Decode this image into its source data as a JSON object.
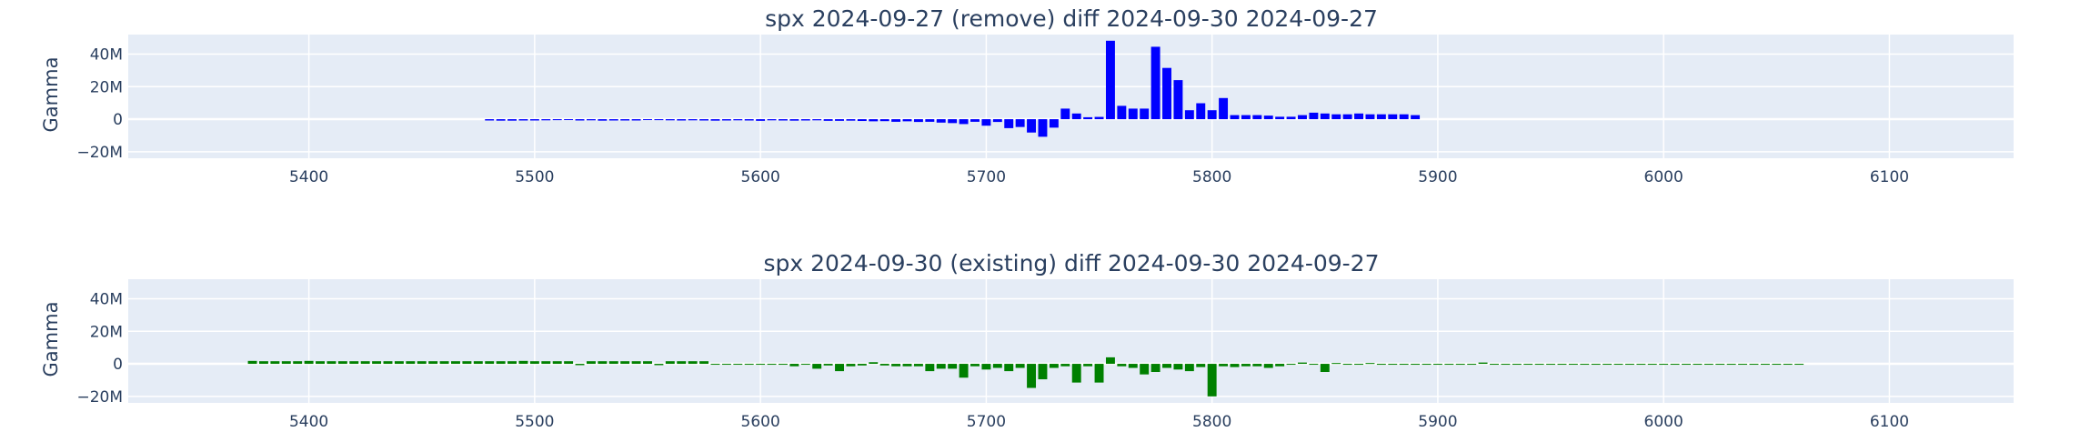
{
  "chart_data": [
    {
      "type": "bar",
      "title": "spx 2024-09-27 (remove) diff 2024-09-30 2024-09-27",
      "xlabel": "",
      "ylabel": "Gamma",
      "xlim": [
        5320,
        6155
      ],
      "ylim": [
        -24,
        52
      ],
      "x_ticks": [
        5400,
        5500,
        5600,
        5700,
        5800,
        5900,
        6000,
        6100
      ],
      "y_ticks": [
        -20,
        0,
        20,
        40
      ],
      "y_tick_labels": [
        "−20M",
        "0",
        "20M",
        "40M"
      ],
      "y_units": "M",
      "bar_color": "#0000ff",
      "x": [
        5480,
        5485,
        5490,
        5495,
        5500,
        5505,
        5510,
        5515,
        5520,
        5525,
        5530,
        5535,
        5540,
        5545,
        5550,
        5555,
        5560,
        5565,
        5570,
        5575,
        5580,
        5585,
        5590,
        5595,
        5600,
        5605,
        5610,
        5615,
        5620,
        5625,
        5630,
        5635,
        5640,
        5645,
        5650,
        5655,
        5660,
        5665,
        5670,
        5675,
        5680,
        5685,
        5690,
        5695,
        5700,
        5705,
        5710,
        5715,
        5720,
        5725,
        5730,
        5735,
        5740,
        5745,
        5750,
        5755,
        5760,
        5765,
        5770,
        5775,
        5780,
        5785,
        5790,
        5795,
        5800,
        5805,
        5810,
        5815,
        5820,
        5825,
        5830,
        5835,
        5840,
        5845,
        5850,
        5855,
        5860,
        5865,
        5870,
        5875,
        5880,
        5885,
        5890
      ],
      "values": [
        -0.8,
        -0.9,
        -0.9,
        -0.8,
        -0.8,
        -0.7,
        -0.6,
        -0.5,
        -0.8,
        -0.7,
        -0.9,
        -0.8,
        -0.8,
        -0.8,
        -0.5,
        -0.6,
        -0.7,
        -0.8,
        -0.7,
        -0.8,
        -0.9,
        -0.8,
        -0.7,
        -0.8,
        -1.0,
        -0.7,
        -0.8,
        -0.9,
        -0.8,
        -0.7,
        -1.0,
        -1.0,
        -0.9,
        -1.1,
        -1.3,
        -1.2,
        -1.6,
        -1.3,
        -1.7,
        -1.6,
        -2.1,
        -2.4,
        -3.0,
        -1.6,
        -4.0,
        -1.7,
        -5.5,
        -4.8,
        -8.2,
        -10.8,
        -5.2,
        6.5,
        3.5,
        1.2,
        1.4,
        48.2,
        8.2,
        6.5,
        6.5,
        44.5,
        31.5,
        24.0,
        5.5,
        9.8,
        5.5,
        13.0,
        2.5,
        2.5,
        2.5,
        2.2,
        1.5,
        1.5,
        2.5,
        4.0,
        3.5,
        3.0,
        3.0,
        3.5,
        3.0,
        3.0,
        3.0,
        3.0,
        2.5
      ]
    },
    {
      "type": "bar",
      "title": "spx 2024-09-30 (existing) diff 2024-09-30 2024-09-27",
      "xlabel": "",
      "ylabel": "Gamma",
      "xlim": [
        5320,
        6155
      ],
      "ylim": [
        -24,
        52
      ],
      "x_ticks": [
        5400,
        5500,
        5600,
        5700,
        5800,
        5900,
        6000,
        6100
      ],
      "y_ticks": [
        -20,
        0,
        20,
        40
      ],
      "y_tick_labels": [
        "−20M",
        "0",
        "20M",
        "40M"
      ],
      "y_units": "M",
      "bar_color": "#008000",
      "x": [
        5375,
        5380,
        5385,
        5390,
        5395,
        5400,
        5405,
        5410,
        5415,
        5420,
        5425,
        5430,
        5435,
        5440,
        5445,
        5450,
        5455,
        5460,
        5465,
        5470,
        5475,
        5480,
        5485,
        5490,
        5495,
        5500,
        5505,
        5510,
        5515,
        5520,
        5525,
        5530,
        5535,
        5540,
        5545,
        5550,
        5555,
        5560,
        5565,
        5570,
        5575,
        5580,
        5585,
        5590,
        5595,
        5600,
        5605,
        5610,
        5615,
        5620,
        5625,
        5630,
        5635,
        5640,
        5645,
        5650,
        5655,
        5660,
        5665,
        5670,
        5675,
        5680,
        5685,
        5690,
        5695,
        5700,
        5705,
        5710,
        5715,
        5720,
        5725,
        5730,
        5735,
        5740,
        5745,
        5750,
        5755,
        5760,
        5765,
        5770,
        5775,
        5780,
        5785,
        5790,
        5795,
        5800,
        5805,
        5810,
        5815,
        5820,
        5825,
        5830,
        5835,
        5840,
        5845,
        5850,
        5855,
        5860,
        5865,
        5870,
        5875,
        5880,
        5885,
        5890,
        5895,
        5900,
        5905,
        5910,
        5915,
        5920,
        5925,
        5930,
        5935,
        5940,
        5945,
        5950,
        5955,
        5960,
        5965,
        5970,
        5975,
        5980,
        5985,
        5990,
        5995,
        6000,
        6005,
        6010,
        6015,
        6020,
        6025,
        6030,
        6035,
        6040,
        6045,
        6050,
        6055,
        6060
      ],
      "values": [
        1.8,
        1.6,
        1.6,
        1.6,
        1.6,
        1.8,
        1.6,
        1.6,
        1.6,
        1.6,
        1.6,
        1.6,
        1.6,
        1.6,
        1.6,
        1.6,
        1.6,
        1.6,
        1.6,
        1.6,
        1.6,
        1.6,
        1.6,
        1.6,
        1.8,
        1.6,
        1.6,
        1.6,
        1.6,
        -0.8,
        1.6,
        1.6,
        1.6,
        1.6,
        1.6,
        1.6,
        -0.8,
        1.6,
        1.6,
        1.6,
        1.6,
        -0.5,
        -0.5,
        -0.5,
        -0.5,
        -0.5,
        -0.5,
        -0.5,
        -1.5,
        -0.5,
        -3.0,
        -1.0,
        -4.5,
        -1.5,
        -1.0,
        1.0,
        -1.0,
        -1.5,
        -1.5,
        -1.5,
        -4.5,
        -3.0,
        -3.0,
        -8.5,
        -1.5,
        -3.5,
        -2.5,
        -4.5,
        -2.5,
        -14.8,
        -9.5,
        -2.5,
        -1.5,
        -11.5,
        -1.5,
        -11.5,
        4.0,
        -1.5,
        -2.5,
        -6.5,
        -5.0,
        -2.5,
        -3.5,
        -4.5,
        -2.0,
        -20.0,
        -1.5,
        -2.0,
        -1.5,
        -1.5,
        -2.5,
        -1.5,
        -0.5,
        0.8,
        -0.5,
        -5.0,
        0.5,
        -0.5,
        -0.5,
        0.5,
        -0.5,
        -0.5,
        -0.5,
        -0.5,
        -0.5,
        -0.5,
        -0.5,
        -0.5,
        -0.5,
        0.8,
        -0.5,
        -0.5,
        -0.5,
        -0.5,
        -0.5,
        -0.5,
        -0.5,
        -0.5,
        -0.5,
        -0.5,
        -0.5,
        -0.5,
        -0.5,
        -0.5,
        -0.5,
        -0.5,
        -0.5,
        -0.5,
        -0.5,
        -0.5,
        -0.5,
        -0.5,
        -0.5,
        -0.5,
        -0.5,
        -0.5,
        -0.5,
        -0.5
      ]
    }
  ]
}
